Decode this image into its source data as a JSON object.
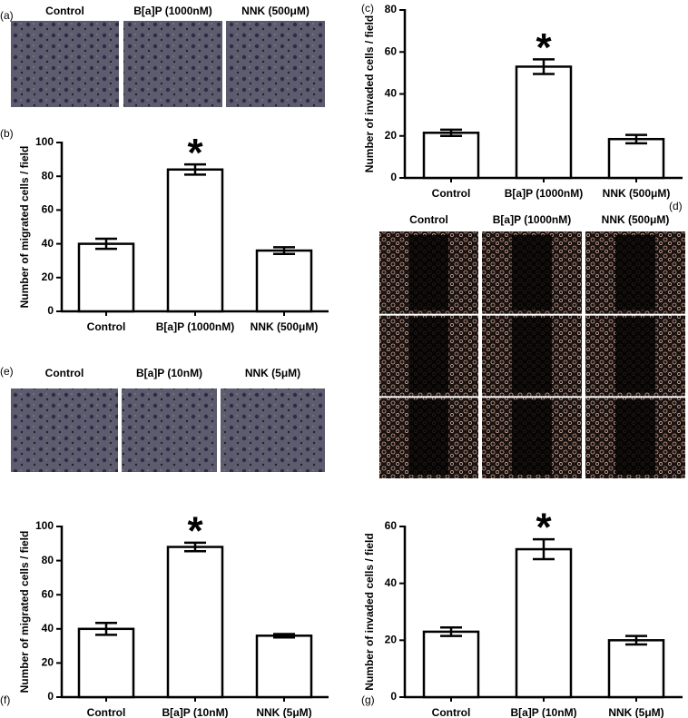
{
  "chart_data": [
    {
      "type": "bar",
      "label": "(b)",
      "y_label": "Number of migrated cells / field",
      "categories": [
        "Control",
        "B[a]P (1000nM)",
        "NNK (500μM)"
      ],
      "values": [
        40,
        84,
        36
      ],
      "errors": [
        3,
        3,
        2
      ],
      "markers": [
        null,
        "*",
        null
      ],
      "ylim": [
        0,
        100
      ],
      "yticks": [
        0,
        20,
        40,
        60,
        80,
        100
      ]
    },
    {
      "type": "bar",
      "label": "(c)",
      "y_label": "Number of invaded cells / field",
      "categories": [
        "Control",
        "B[a]P (1000nM)",
        "NNK (500μM)"
      ],
      "values": [
        21.5,
        53,
        18.5
      ],
      "errors": [
        1.5,
        3.5,
        2
      ],
      "markers": [
        null,
        "*",
        null
      ],
      "ylim": [
        0,
        80
      ],
      "yticks": [
        0,
        20,
        40,
        60,
        80
      ]
    },
    {
      "type": "bar",
      "label": "(f)",
      "y_label": "Number of migrated cells / field",
      "categories": [
        "Control",
        "B[a]P (10nM)",
        "NNK (5μM)"
      ],
      "values": [
        40,
        88,
        36
      ],
      "errors": [
        3.5,
        2.5,
        1
      ],
      "markers": [
        null,
        "*",
        null
      ],
      "ylim": [
        0,
        100
      ],
      "yticks": [
        0,
        20,
        40,
        60,
        80,
        100
      ]
    },
    {
      "type": "bar",
      "label": "(g)",
      "y_label": "Number of invaded cells / field",
      "categories": [
        "Control",
        "B[a]P (10nM)",
        "NNK (5μM)"
      ],
      "values": [
        23,
        52,
        20
      ],
      "errors": [
        1.5,
        3.5,
        1.5
      ],
      "markers": [
        null,
        "*",
        null
      ],
      "ylim": [
        0,
        60
      ],
      "yticks": [
        0,
        20,
        40,
        60
      ]
    }
  ],
  "image_panels": [
    {
      "label": "(a)",
      "captions": [
        "Control",
        "B[a]P (1000nM)",
        "NNK (500μM)"
      ]
    },
    {
      "label": "(d)",
      "captions": [
        "Control",
        "B[a]P (1000nM)",
        "NNK (500μM)"
      ]
    },
    {
      "label": "(e)",
      "captions": [
        "Control",
        "B[a]P (10nM)",
        "NNK (5μM)"
      ]
    }
  ]
}
